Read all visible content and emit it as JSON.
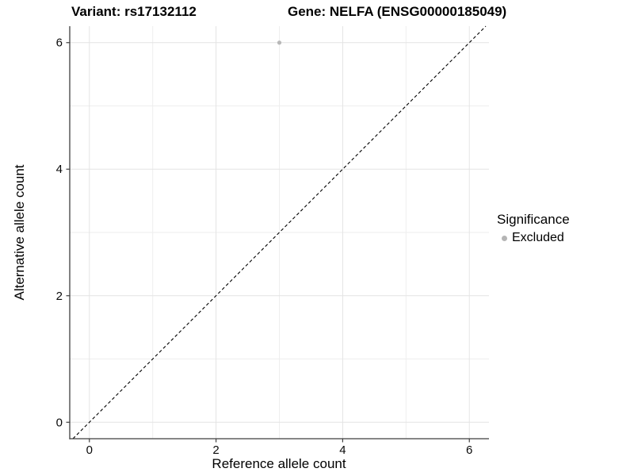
{
  "chart_data": {
    "type": "scatter",
    "titles": {
      "left": "Variant: rs17132112",
      "right": "Gene: NELFA (ENSG00000185049)"
    },
    "xlabel": "Reference allele count",
    "ylabel": "Alternative allele count",
    "xlim": [
      -0.31,
      6.31
    ],
    "ylim": [
      -0.26,
      6.26
    ],
    "xticks": [
      0,
      2,
      4,
      6
    ],
    "yticks": [
      0,
      2,
      4,
      6
    ],
    "x_minor": [
      1,
      3,
      5
    ],
    "y_minor": [
      1,
      3,
      5
    ],
    "grid": true,
    "series": [
      {
        "name": "Excluded",
        "color": "#b8b8b8",
        "points": [
          [
            3,
            6
          ]
        ]
      }
    ],
    "identity_line": {
      "equation": "y = x",
      "style": "dashed",
      "color": "#000000"
    },
    "legend": {
      "position": "right",
      "title": "Significance",
      "items": [
        {
          "label": "Excluded",
          "color": "#b5b5b5"
        }
      ]
    }
  },
  "style": {
    "background": "#ffffff",
    "grid_major": "#e4e4e4",
    "grid_minor": "#eeeeee",
    "axis_color": "#3f3f3f",
    "tick_label_size": 15,
    "point_radius": 2.6
  }
}
